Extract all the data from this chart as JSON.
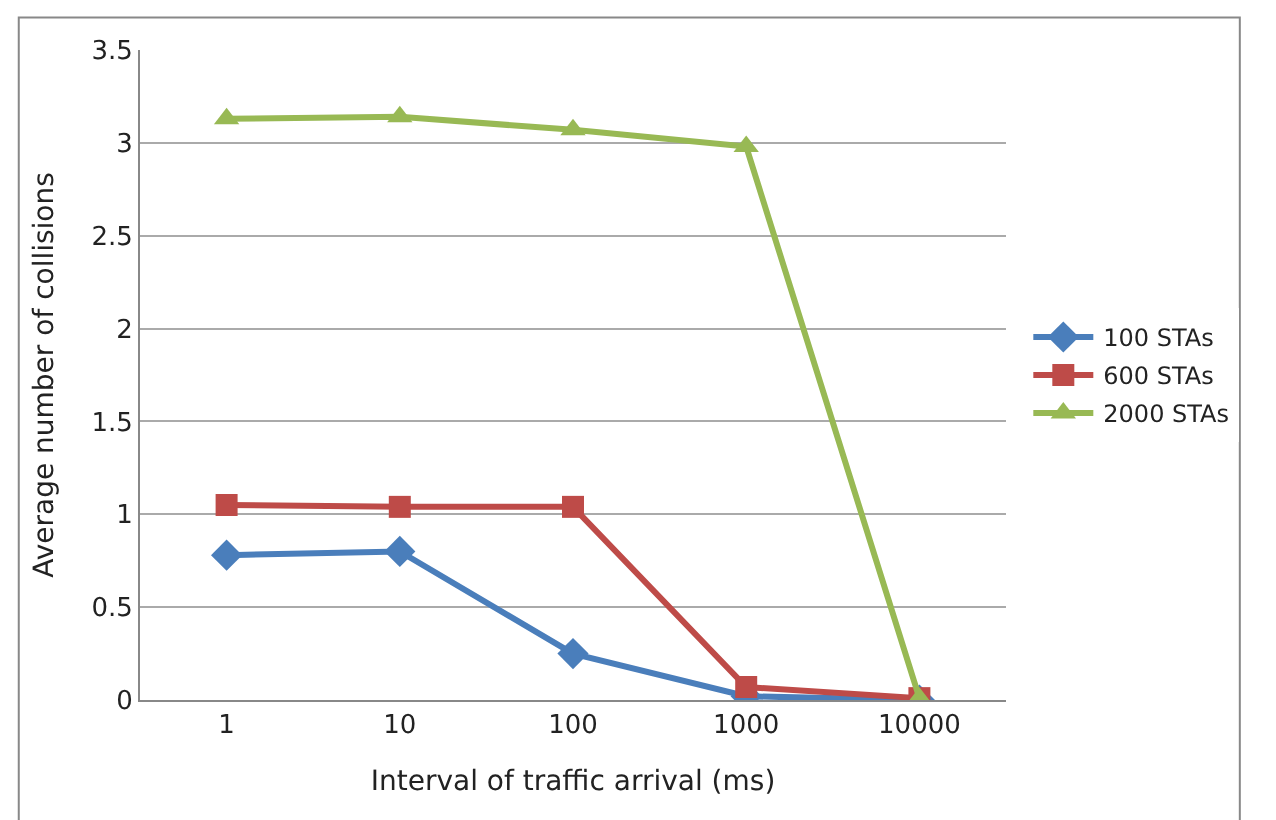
{
  "chart_data": {
    "type": "line",
    "xlabel": "Interval of traffic arrival (ms)",
    "ylabel": "Average number of collisions",
    "categories": [
      "1",
      "10",
      "100",
      "1000",
      "10000"
    ],
    "series": [
      {
        "name": "100 STAs",
        "color": "#4a7ebb",
        "marker": "diamond",
        "values": [
          0.78,
          0.8,
          0.25,
          0.02,
          0.0
        ]
      },
      {
        "name": "600 STAs",
        "color": "#be4b48",
        "marker": "square",
        "values": [
          1.05,
          1.04,
          1.04,
          0.07,
          0.01
        ]
      },
      {
        "name": "2000 STAs",
        "color": "#98b954",
        "marker": "triangle",
        "values": [
          3.13,
          3.14,
          3.07,
          2.98,
          0.01
        ]
      }
    ],
    "ylim": [
      0,
      3.5
    ],
    "yticks": [
      0,
      0.5,
      1,
      1.5,
      2,
      2.5,
      3,
      3.5
    ],
    "grid": "y",
    "legend": "right",
    "line_style": "solid"
  }
}
